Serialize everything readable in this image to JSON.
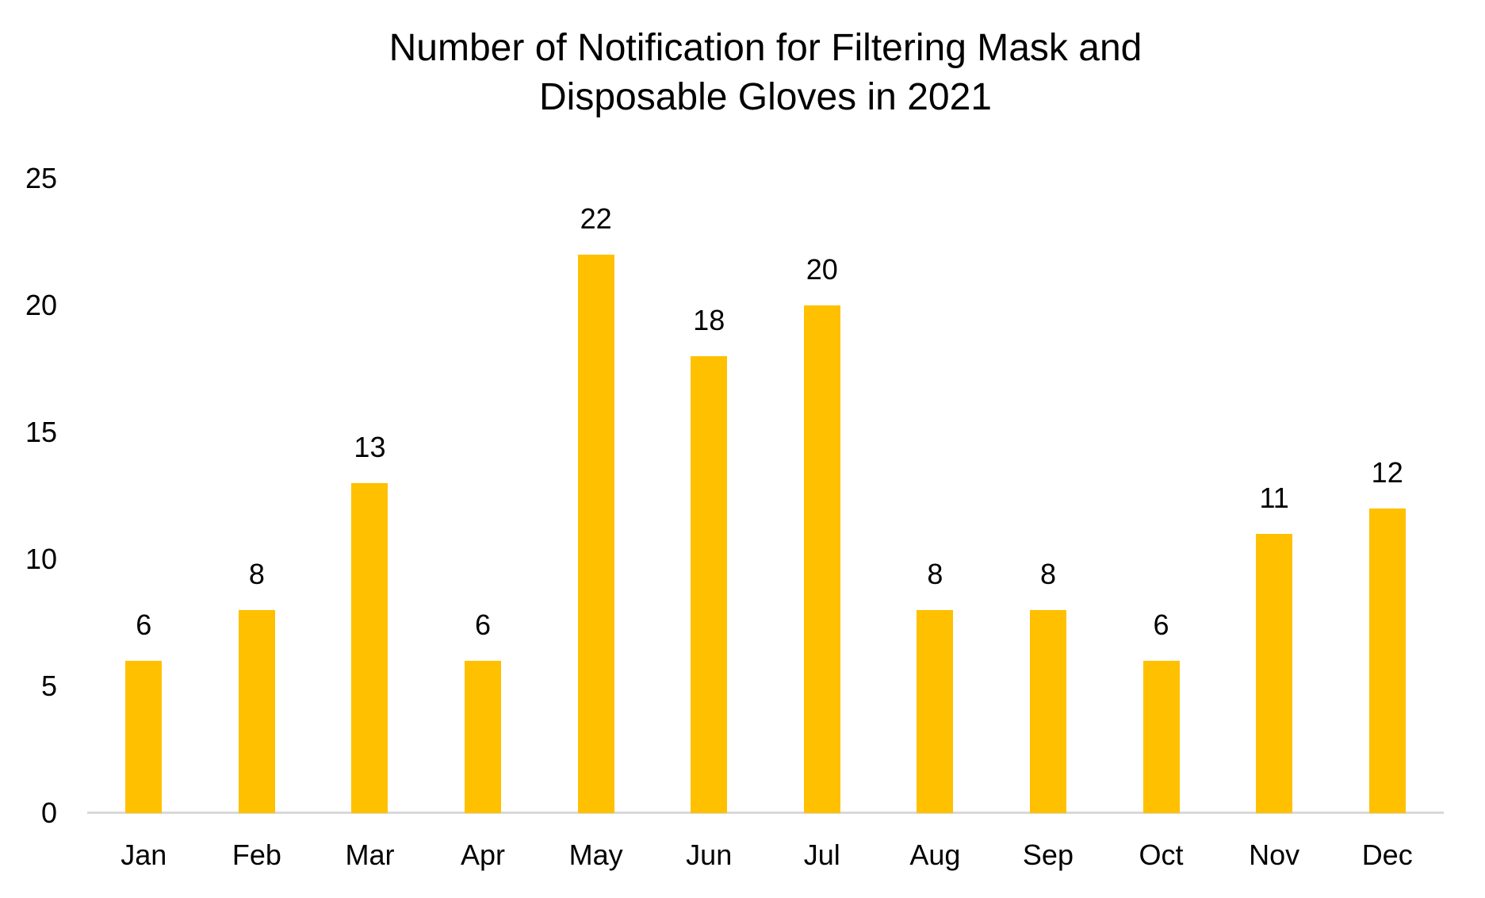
{
  "chart_data": {
    "type": "bar",
    "title": "Number of Notification for Filtering Mask and\nDisposable Gloves in 2021",
    "categories": [
      "Jan",
      "Feb",
      "Mar",
      "Apr",
      "May",
      "Jun",
      "Jul",
      "Aug",
      "Sep",
      "Oct",
      "Nov",
      "Dec"
    ],
    "values": [
      6,
      8,
      13,
      6,
      22,
      18,
      20,
      8,
      8,
      6,
      11,
      12
    ],
    "xlabel": "",
    "ylabel": "",
    "ylim": [
      0,
      25
    ],
    "yticks": [
      0,
      5,
      10,
      15,
      20,
      25
    ],
    "grid": false,
    "legend_position": "none",
    "data_labels": true,
    "bar_color": "#FFC000",
    "axis_line_color": "#D9D9D9",
    "text_color": "#000000",
    "background_color": "#FFFFFF"
  }
}
